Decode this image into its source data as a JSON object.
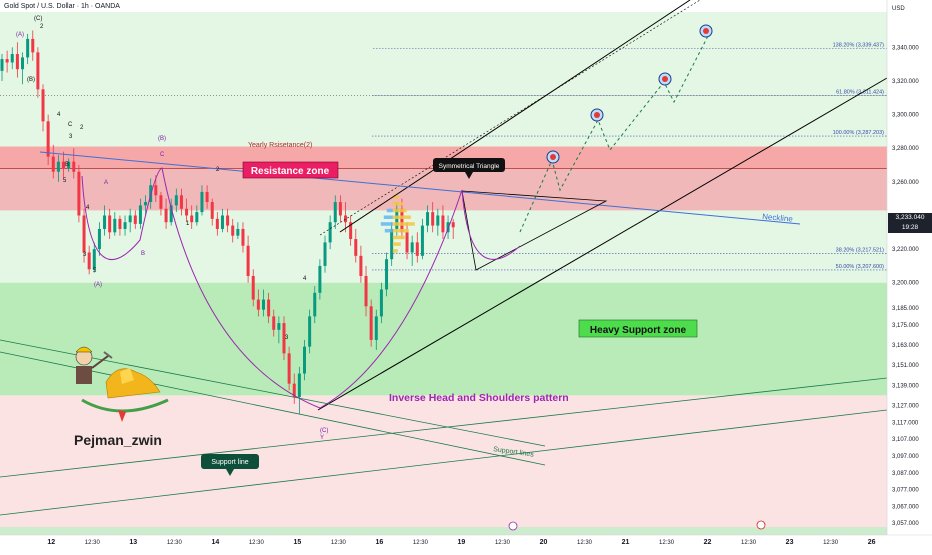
{
  "header": {
    "title": "Gold Spot / U.S. Dollar · 1h · OANDA",
    "currency": "USD"
  },
  "price_badge": {
    "price": "3,233.040",
    "countdown": "19:28"
  },
  "colors": {
    "resistance_zone": "#f0b8b8",
    "support_zone": "#b8ebb8",
    "upper_band": "#e4f6e4",
    "lower_band": "#fbe3e3",
    "bull_candle": "#089981",
    "bear_candle": "#f23645",
    "neckline": "#3f6fd8",
    "pattern": "#9c27b0",
    "channel": "#000000",
    "support_lines": "#1b7a4a"
  },
  "chart_data": {
    "type": "candlestick",
    "title": "Gold Spot / U.S. Dollar · 1h · OANDA",
    "y_axis": {
      "label": "USD",
      "range": [
        3050,
        3361
      ],
      "ticks": [
        3057,
        3067,
        3077,
        3087,
        3097,
        3107,
        3117,
        3127,
        3139,
        3151,
        3163,
        3175,
        3185,
        3200,
        3220,
        3240,
        3260,
        3280,
        3300,
        3320,
        3340
      ],
      "tick_labels": [
        "3,057.000",
        "3,067.000",
        "3,077.000",
        "3,087.000",
        "3,097.000",
        "3,107.000",
        "3,117.000",
        "3,127.000",
        "3,139.000",
        "3,151.000",
        "3,163.000",
        "3,175.000",
        "3,185.000",
        "3,200.000",
        "3,220.000",
        "3,240.000",
        "3,260.000",
        "3,280.000",
        "3,300.000",
        "3,320.000",
        "3,340.000"
      ]
    },
    "x_axis": {
      "range": [
        0,
        173
      ],
      "ticks": [
        10,
        26,
        42,
        58,
        74,
        90,
        106,
        122,
        138,
        154,
        170
      ],
      "tick_labels": [
        "12",
        "13",
        "14",
        "15",
        "16",
        "19",
        "20",
        "21",
        "22",
        "23",
        "26"
      ],
      "mid_ticks": [
        18,
        34,
        50,
        66,
        82,
        98,
        114,
        130,
        146,
        162
      ],
      "mid_tick_labels": [
        "12:30",
        "12:30",
        "12:30",
        "12:30",
        "12:30",
        "12:30",
        "12:30",
        "12:30",
        "12:30",
        "12:30"
      ]
    },
    "last_price": 3233.04,
    "zones": [
      {
        "name": "Resistance zone",
        "from": 3243,
        "to": 3268
      },
      {
        "name": "Yearly Rsisetance(2)",
        "from": 3268,
        "to": 3281
      },
      {
        "name": "Heavy Support zone",
        "from": 3133,
        "to": 3200
      }
    ],
    "fib_levels": [
      {
        "label": "138.20% (3,339.437)",
        "value": 3339.437
      },
      {
        "label": "61.80% (3,311.424)",
        "value": 3311.424
      },
      {
        "label": "100.00% (3,287.203)",
        "value": 3287.203
      },
      {
        "label": "38.20% (3,217.521)",
        "value": 3217.521
      },
      {
        "label": "50.00% (3,207.600)",
        "value": 3207.6
      }
    ],
    "candles": [
      [
        0,
        3326,
        3336,
        3320,
        3333
      ],
      [
        1,
        3333,
        3338,
        3325,
        3331
      ],
      [
        2,
        3331,
        3340,
        3327,
        3336
      ],
      [
        3,
        3336,
        3343,
        3322,
        3327
      ],
      [
        4,
        3327,
        3337,
        3318,
        3334
      ],
      [
        5,
        3334,
        3348,
        3330,
        3345
      ],
      [
        6,
        3345,
        3350,
        3332,
        3337
      ],
      [
        7,
        3337,
        3340,
        3310,
        3315
      ],
      [
        8,
        3315,
        3318,
        3290,
        3296
      ],
      [
        9,
        3296,
        3300,
        3270,
        3275
      ],
      [
        10,
        3275,
        3282,
        3262,
        3266
      ],
      [
        11,
        3266,
        3276,
        3260,
        3272
      ],
      [
        12,
        3272,
        3278,
        3262,
        3268
      ],
      [
        13,
        3268,
        3274,
        3266,
        3272
      ],
      [
        14,
        3272,
        3280,
        3262,
        3266
      ],
      [
        15,
        3266,
        3270,
        3236,
        3240
      ],
      [
        16,
        3240,
        3244,
        3212,
        3218
      ],
      [
        17,
        3218,
        3222,
        3205,
        3208
      ],
      [
        18,
        3208,
        3224,
        3206,
        3220
      ],
      [
        19,
        3220,
        3236,
        3216,
        3232
      ],
      [
        20,
        3232,
        3246,
        3228,
        3240
      ],
      [
        21,
        3240,
        3244,
        3226,
        3230
      ],
      [
        22,
        3230,
        3242,
        3228,
        3238
      ],
      [
        23,
        3238,
        3240,
        3228,
        3232
      ],
      [
        24,
        3232,
        3240,
        3228,
        3236
      ],
      [
        25,
        3236,
        3244,
        3230,
        3240
      ],
      [
        26,
        3240,
        3243,
        3232,
        3235
      ],
      [
        27,
        3235,
        3250,
        3232,
        3246
      ],
      [
        28,
        3246,
        3252,
        3240,
        3248
      ],
      [
        29,
        3248,
        3262,
        3244,
        3258
      ],
      [
        30,
        3258,
        3264,
        3248,
        3252
      ],
      [
        31,
        3252,
        3254,
        3240,
        3244
      ],
      [
        32,
        3244,
        3250,
        3232,
        3236
      ],
      [
        33,
        3236,
        3250,
        3234,
        3246
      ],
      [
        34,
        3246,
        3256,
        3242,
        3252
      ],
      [
        35,
        3252,
        3256,
        3240,
        3244
      ],
      [
        36,
        3244,
        3250,
        3236,
        3240
      ],
      [
        37,
        3240,
        3246,
        3232,
        3236
      ],
      [
        38,
        3236,
        3246,
        3234,
        3242
      ],
      [
        39,
        3242,
        3258,
        3240,
        3254
      ],
      [
        40,
        3254,
        3258,
        3244,
        3248
      ],
      [
        41,
        3248,
        3250,
        3234,
        3238
      ],
      [
        42,
        3238,
        3242,
        3228,
        3232
      ],
      [
        43,
        3232,
        3244,
        3230,
        3240
      ],
      [
        44,
        3240,
        3244,
        3230,
        3234
      ],
      [
        45,
        3234,
        3238,
        3224,
        3228
      ],
      [
        46,
        3228,
        3236,
        3226,
        3232
      ],
      [
        47,
        3232,
        3236,
        3218,
        3222
      ],
      [
        48,
        3222,
        3228,
        3200,
        3204
      ],
      [
        49,
        3204,
        3208,
        3186,
        3190
      ],
      [
        50,
        3190,
        3196,
        3180,
        3184
      ],
      [
        51,
        3184,
        3196,
        3180,
        3190
      ],
      [
        52,
        3190,
        3194,
        3176,
        3180
      ],
      [
        53,
        3180,
        3184,
        3168,
        3172
      ],
      [
        54,
        3172,
        3180,
        3164,
        3176
      ],
      [
        55,
        3176,
        3180,
        3154,
        3158
      ],
      [
        56,
        3158,
        3162,
        3136,
        3140
      ],
      [
        57,
        3140,
        3146,
        3128,
        3132
      ],
      [
        58,
        3132,
        3150,
        3122,
        3146
      ],
      [
        59,
        3146,
        3166,
        3142,
        3162
      ],
      [
        60,
        3162,
        3184,
        3158,
        3180
      ],
      [
        61,
        3180,
        3198,
        3176,
        3194
      ],
      [
        62,
        3194,
        3214,
        3190,
        3210
      ],
      [
        63,
        3210,
        3228,
        3206,
        3224
      ],
      [
        64,
        3224,
        3240,
        3220,
        3236
      ],
      [
        65,
        3236,
        3252,
        3232,
        3248
      ],
      [
        66,
        3248,
        3252,
        3236,
        3240
      ],
      [
        67,
        3240,
        3248,
        3230,
        3236
      ],
      [
        68,
        3236,
        3240,
        3222,
        3226
      ],
      [
        69,
        3226,
        3232,
        3212,
        3216
      ],
      [
        70,
        3216,
        3222,
        3200,
        3204
      ],
      [
        71,
        3204,
        3210,
        3180,
        3186
      ],
      [
        72,
        3186,
        3190,
        3162,
        3166
      ],
      [
        73,
        3166,
        3184,
        3160,
        3180
      ],
      [
        74,
        3180,
        3200,
        3176,
        3196
      ],
      [
        75,
        3196,
        3218,
        3192,
        3214
      ],
      [
        76,
        3214,
        3236,
        3210,
        3232
      ],
      [
        77,
        3232,
        3248,
        3228,
        3244
      ],
      [
        78,
        3244,
        3250,
        3226,
        3230
      ],
      [
        79,
        3230,
        3236,
        3214,
        3218
      ],
      [
        80,
        3218,
        3228,
        3210,
        3224
      ],
      [
        81,
        3224,
        3230,
        3212,
        3216
      ],
      [
        82,
        3216,
        3238,
        3214,
        3234
      ],
      [
        83,
        3234,
        3246,
        3230,
        3242
      ],
      [
        84,
        3242,
        3248,
        3230,
        3234
      ],
      [
        85,
        3234,
        3244,
        3228,
        3240
      ],
      [
        86,
        3240,
        3246,
        3226,
        3230
      ],
      [
        87,
        3230,
        3240,
        3226,
        3236
      ],
      [
        88,
        3236,
        3238,
        3226,
        3233
      ]
    ]
  },
  "annotations": {
    "resistance_zone": "Resistance zone",
    "yearly_resistance": "Yearly Rsisetance(2)",
    "heavy_support": "Heavy Support zone",
    "symmetrical_triangle": "Symmetrical Triangle",
    "neckline": "Neckline",
    "inverse_hs": "Inverse Head and Shoulders pattern",
    "support_line": "Support line",
    "support_lines": "Support lines",
    "author": "Pejman_zwin"
  },
  "wave_labels": [
    "(C)",
    "2",
    "(A)",
    "(B)",
    "4",
    "C",
    "2",
    "3",
    "B",
    "5",
    "3",
    "5",
    "(A)",
    "4",
    "A",
    "B",
    "(B)",
    "C",
    "2",
    "1",
    "3",
    "4",
    "(C)",
    "Y"
  ]
}
